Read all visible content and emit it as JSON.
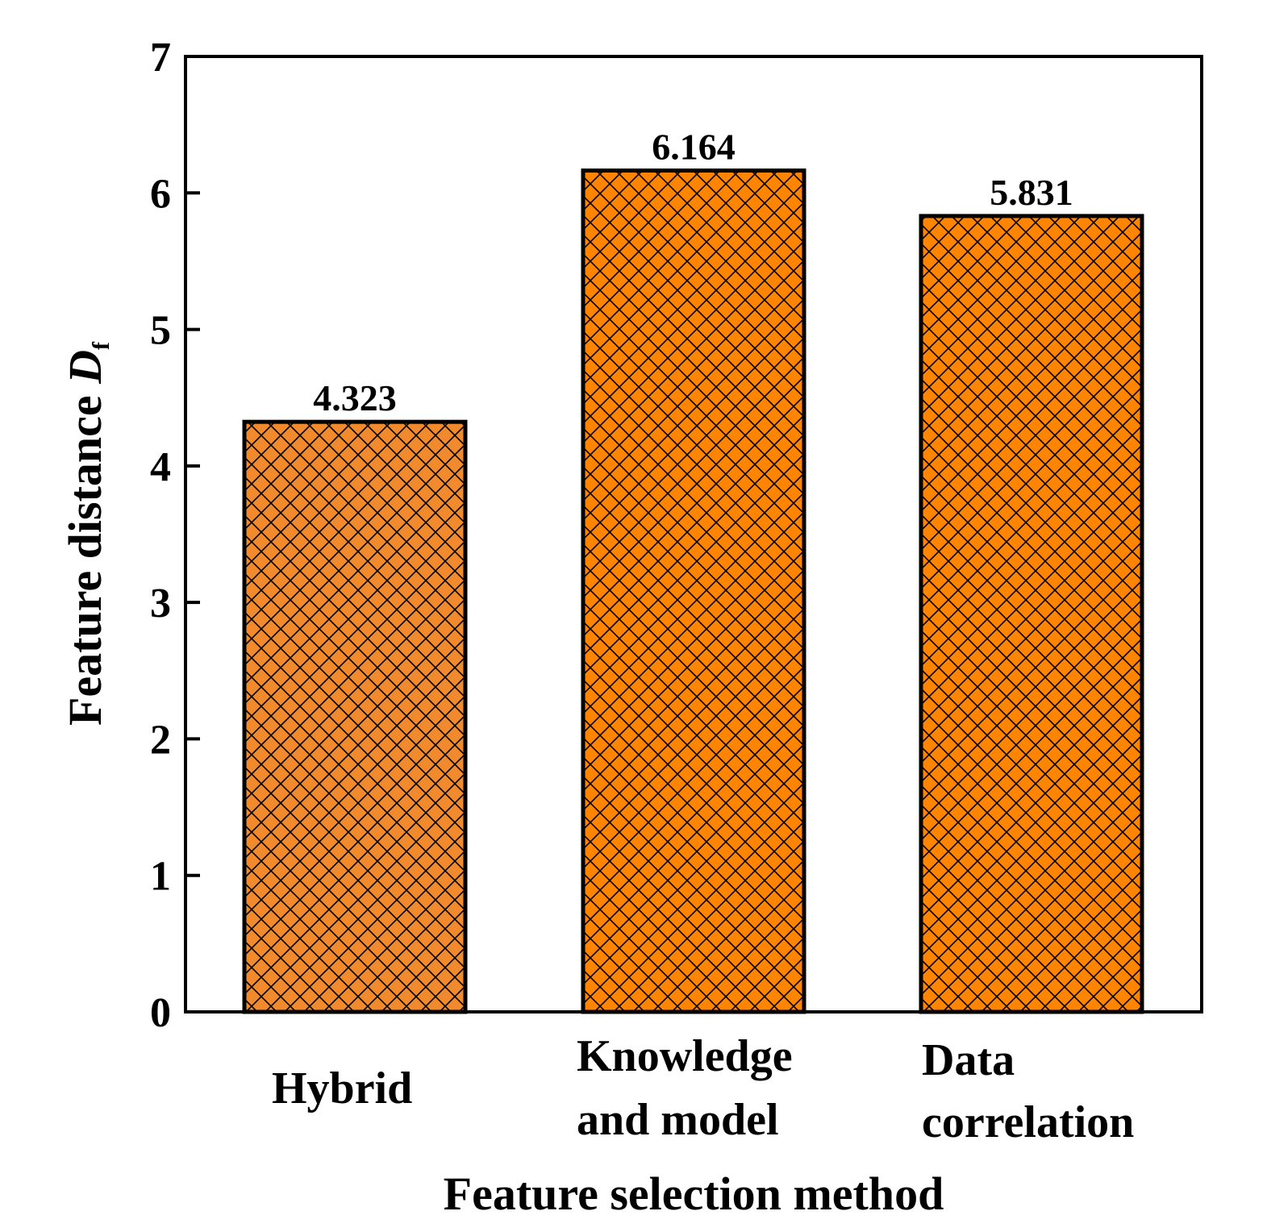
{
  "chart_data": {
    "type": "bar",
    "title": "",
    "xlabel": "Feature selection method",
    "ylabel": "Feature distance",
    "ylabel_symbol": "D",
    "ylabel_subscript": "f",
    "ylim": [
      0,
      7
    ],
    "yticks": [
      "0",
      "1",
      "2",
      "3",
      "4",
      "5",
      "6",
      "7"
    ],
    "categories": [
      {
        "lines": [
          "Hybrid"
        ]
      },
      {
        "lines": [
          "Knowledge",
          "and model"
        ]
      },
      {
        "lines": [
          "Data",
          "correlation"
        ]
      }
    ],
    "values": [
      4.323,
      6.164,
      5.831
    ],
    "value_labels": [
      "4.323",
      "6.164",
      "5.831"
    ],
    "bar_colors": [
      "#F08A2C",
      "#FF8400",
      "#FF8400"
    ],
    "hatch": "crosshatch",
    "grid": false,
    "legend": false
  }
}
